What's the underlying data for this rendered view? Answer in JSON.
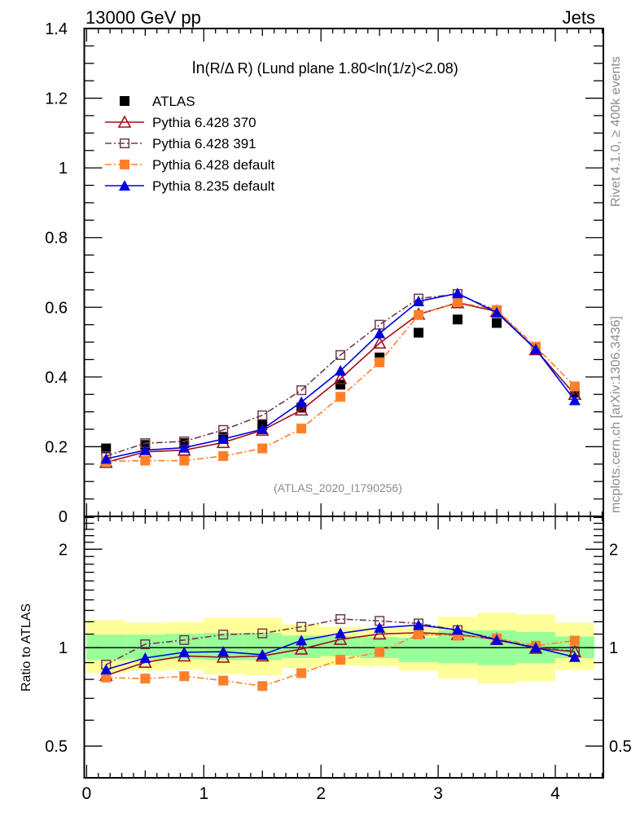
{
  "header": {
    "left_label": "13000 GeV pp",
    "right_label": "Jets"
  },
  "side_labels": {
    "rivet": "Rivet 4.1.0, ≥ 400k events",
    "mcplots": "mcplots.cern.ch [arXiv:1306.3436]"
  },
  "chart_data": [
    {
      "type": "line",
      "title": "ln(R/Δ R) (Lund plane 1.80<ln(1/z)<2.08)",
      "title_prefix": "ln",
      "title_rest": "(R/Δ R) (Lund plane 1.80<ln(1/z)<2.08)",
      "watermark": "(ATLAS_2020_I1790256)",
      "xlabel": "",
      "ylabel": "",
      "xlim": [
        -0.02,
        4.41
      ],
      "ylim": [
        0,
        1.4
      ],
      "x_ticks": [
        0,
        1,
        2,
        3,
        4
      ],
      "y_ticks": [
        0,
        0.2,
        0.4,
        0.6,
        0.8,
        1,
        1.2,
        1.4
      ],
      "y_tick_labels": [
        "0",
        "0.2",
        "0.4",
        "0.6",
        "0.8",
        "1",
        "1.2",
        "1.4"
      ],
      "grid": false,
      "legend_position": "top-left",
      "x": [
        0.166,
        0.5,
        0.833,
        1.166,
        1.5,
        1.833,
        2.166,
        2.5,
        2.833,
        3.166,
        3.5,
        3.833,
        4.166
      ],
      "series": [
        {
          "name": "ATLAS",
          "color": "#000000",
          "marker": "filled-square",
          "line": "none",
          "values": [
            0.195,
            0.205,
            0.21,
            0.228,
            0.262,
            0.312,
            0.378,
            0.456,
            0.527,
            0.565,
            0.555,
            0.48,
            0.355
          ]
        },
        {
          "name": "Pythia 6.428 370",
          "color": "#a0101c",
          "marker": "open-triangle",
          "line": "solid",
          "values": [
            0.155,
            0.185,
            0.19,
            0.212,
            0.247,
            0.305,
            0.395,
            0.497,
            0.58,
            0.613,
            0.588,
            0.478,
            0.35
          ]
        },
        {
          "name": "Pythia 6.428 391",
          "color": "#6e3a50",
          "marker": "open-square",
          "line": "dash-dot",
          "values": [
            0.173,
            0.21,
            0.215,
            0.248,
            0.29,
            0.362,
            0.463,
            0.55,
            0.625,
            0.638,
            0.59,
            0.48,
            0.348
          ]
        },
        {
          "name": "Pythia 6.428 default",
          "color": "#ff7f2a",
          "marker": "filled-square",
          "line": "dash-dot",
          "values": [
            0.158,
            0.16,
            0.16,
            0.173,
            0.195,
            0.252,
            0.343,
            0.442,
            0.578,
            0.615,
            0.592,
            0.487,
            0.373
          ]
        },
        {
          "name": "Pythia 8.235 default",
          "color": "#0000e0",
          "marker": "filled-triangle",
          "line": "solid",
          "values": [
            0.165,
            0.19,
            0.197,
            0.222,
            0.25,
            0.328,
            0.418,
            0.525,
            0.617,
            0.64,
            0.585,
            0.48,
            0.333
          ]
        }
      ]
    },
    {
      "type": "line",
      "title": "",
      "xlabel": "",
      "ylabel": "Ratio to ATLAS",
      "yscale": "log",
      "xlim": [
        -0.02,
        4.41
      ],
      "ylim": [
        0.4,
        2.52
      ],
      "x_ticks": [
        0,
        1,
        2,
        3,
        4
      ],
      "x_tick_labels": [
        "0",
        "1",
        "2",
        "3",
        "4"
      ],
      "y_ticks": [
        0.5,
        1,
        2
      ],
      "y_tick_labels": [
        "0.5",
        "1",
        "2"
      ],
      "reference_line": 1,
      "x": [
        0.166,
        0.5,
        0.833,
        1.166,
        1.5,
        1.833,
        2.166,
        2.5,
        2.833,
        3.166,
        3.5,
        3.833,
        4.166
      ],
      "bin_half_width": 0.1667,
      "bands": {
        "yellow_color": "#ffff99",
        "green_color": "#99ff99",
        "yellow_upper": [
          1.214,
          1.193,
          1.2,
          1.235,
          1.235,
          1.179,
          1.159,
          1.152,
          1.152,
          1.242,
          1.278,
          1.264,
          1.193
        ],
        "yellow_lower": [
          0.838,
          0.851,
          0.855,
          0.83,
          0.822,
          0.868,
          0.882,
          0.878,
          0.851,
          0.805,
          0.777,
          0.79,
          0.855
        ],
        "green_upper": [
          1.096,
          1.096,
          1.102,
          1.109,
          1.109,
          1.089,
          1.083,
          1.077,
          1.071,
          1.13,
          1.13,
          1.116,
          1.083
        ],
        "green_lower": [
          0.916,
          0.922,
          0.922,
          0.916,
          0.916,
          0.929,
          0.942,
          0.929,
          0.903,
          0.896,
          0.884,
          0.896,
          0.929
        ]
      },
      "series": [
        {
          "name": "Pythia 6.428 370",
          "values": [
            0.822,
            0.902,
            0.943,
            0.935,
            0.943,
            0.99,
            1.06,
            1.101,
            1.111,
            1.097,
            1.06,
            0.996,
            0.972
          ]
        },
        {
          "name": "Pythia 6.428 391",
          "values": [
            0.887,
            1.024,
            1.055,
            1.096,
            1.106,
            1.158,
            1.223,
            1.207,
            1.186,
            1.131,
            1.063,
            1.0,
            0.976
          ]
        },
        {
          "name": "Pythia 6.428 default",
          "values": [
            0.81,
            0.804,
            0.818,
            0.793,
            0.763,
            0.836,
            0.918,
            0.969,
            1.097,
            1.088,
            1.067,
            1.014,
            1.051
          ]
        },
        {
          "name": "Pythia 8.235 default",
          "values": [
            0.857,
            0.93,
            0.968,
            0.972,
            0.951,
            1.052,
            1.106,
            1.15,
            1.172,
            1.133,
            1.056,
            1.0,
            0.936
          ]
        }
      ]
    }
  ]
}
